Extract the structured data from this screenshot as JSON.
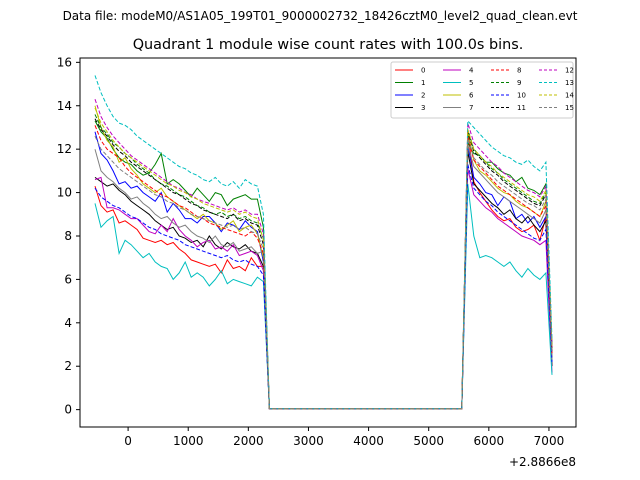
{
  "figure": {
    "suptitle": "Data file: modeM0/AS1A05_199T01_9000002732_18426cztM0_level2_quad_clean.evt"
  },
  "chart_data": {
    "type": "line",
    "title": "Quadrant 1 module wise count rates with 100.0s bins.",
    "xlabel": "",
    "ylabel": "",
    "x_offset_label": "+2.8866e8",
    "xlim": [
      -800,
      7450
    ],
    "ylim": [
      -0.8,
      16.2
    ],
    "xticks": [
      0,
      1000,
      2000,
      3000,
      4000,
      5000,
      6000,
      7000
    ],
    "yticks": [
      0,
      2,
      4,
      6,
      8,
      10,
      12,
      14,
      16
    ],
    "legend_location": "top-right",
    "legend_columns": 4,
    "x": [
      -550,
      -450,
      -350,
      -250,
      -150,
      -50,
      50,
      150,
      250,
      350,
      450,
      550,
      650,
      750,
      850,
      950,
      1050,
      1150,
      1250,
      1350,
      1450,
      1550,
      1650,
      1750,
      1850,
      1950,
      2050,
      2150,
      2250,
      2350,
      2450,
      5550,
      5650,
      5750,
      5850,
      5950,
      6050,
      6150,
      6250,
      6350,
      6450,
      6550,
      6650,
      6750,
      6850,
      6950,
      7050
    ],
    "series": [
      {
        "name": "0",
        "color": "#ff0000",
        "dash": "solid",
        "values": [
          10.3,
          9.4,
          9.1,
          9.2,
          8.6,
          8.7,
          8.5,
          8.3,
          7.9,
          7.8,
          7.7,
          7.8,
          7.6,
          7.7,
          7.4,
          7.2,
          6.9,
          6.8,
          6.7,
          6.6,
          6.7,
          6.3,
          6.9,
          6.5,
          6.6,
          6.4,
          7.0,
          6.6,
          6.6,
          0.05,
          0.05,
          0.05,
          12.9,
          10.5,
          10.0,
          9.6,
          9.2,
          8.9,
          8.7,
          8.8,
          8.4,
          8.2,
          8.3,
          8.5,
          7.8,
          8.9,
          2.6
        ]
      },
      {
        "name": "1",
        "color": "#008000",
        "dash": "solid",
        "values": [
          13.3,
          12.8,
          12.5,
          12.0,
          11.6,
          11.4,
          11.3,
          11.0,
          10.8,
          10.9,
          11.3,
          11.8,
          10.4,
          10.6,
          10.4,
          10.1,
          9.8,
          10.2,
          9.9,
          9.6,
          10.0,
          9.9,
          9.4,
          9.7,
          9.8,
          9.9,
          9.7,
          9.7,
          8.4,
          0.05,
          0.05,
          0.05,
          12.3,
          11.8,
          11.7,
          11.4,
          11.4,
          11.1,
          10.9,
          10.8,
          10.5,
          10.7,
          10.2,
          10.1,
          9.9,
          10.4,
          2.9
        ]
      },
      {
        "name": "2",
        "color": "#0000ff",
        "dash": "solid",
        "values": [
          12.8,
          11.8,
          11.5,
          11.0,
          10.4,
          10.5,
          10.2,
          10.3,
          10.0,
          9.8,
          9.6,
          10.0,
          9.1,
          9.5,
          9.2,
          8.8,
          8.8,
          8.6,
          8.9,
          8.9,
          8.6,
          8.2,
          8.6,
          8.5,
          8.3,
          8.7,
          8.4,
          8.2,
          6.8,
          0.05,
          0.05,
          0.05,
          12.2,
          10.7,
          10.4,
          10.0,
          9.9,
          9.4,
          9.8,
          9.6,
          8.8,
          9.0,
          8.6,
          8.9,
          8.4,
          8.9,
          2.4
        ]
      },
      {
        "name": "3",
        "color": "#000000",
        "dash": "solid",
        "values": [
          10.7,
          10.5,
          10.3,
          10.4,
          10.1,
          9.9,
          9.6,
          9.4,
          9.2,
          9.0,
          8.7,
          8.5,
          8.3,
          8.4,
          8.0,
          7.9,
          7.7,
          7.8,
          7.5,
          8.0,
          7.6,
          7.4,
          7.7,
          7.5,
          7.4,
          7.6,
          7.3,
          7.2,
          6.6,
          0.05,
          0.05,
          0.05,
          11.9,
          10.4,
          10.1,
          9.8,
          9.5,
          9.3,
          9.0,
          9.2,
          8.8,
          8.6,
          8.9,
          8.5,
          8.2,
          8.7,
          2.0
        ]
      },
      {
        "name": "4",
        "color": "#bf00bf",
        "dash": "solid",
        "values": [
          10.6,
          10.7,
          9.3,
          9.3,
          9.2,
          9.0,
          8.8,
          8.8,
          8.5,
          8.2,
          8.1,
          8.5,
          8.2,
          8.8,
          8.3,
          8.0,
          7.8,
          7.5,
          7.7,
          7.8,
          7.4,
          7.5,
          7.3,
          7.6,
          7.1,
          7.2,
          7.3,
          7.1,
          6.4,
          0.05,
          0.05,
          0.05,
          11.1,
          9.9,
          9.6,
          9.3,
          9.1,
          8.8,
          8.6,
          8.4,
          8.2,
          8.0,
          7.9,
          7.8,
          7.6,
          7.8,
          1.7
        ]
      },
      {
        "name": "5",
        "color": "#00bfbf",
        "dash": "solid",
        "values": [
          9.5,
          8.4,
          8.7,
          8.9,
          7.2,
          7.8,
          7.6,
          7.3,
          7.0,
          7.2,
          6.8,
          6.6,
          6.5,
          6.0,
          6.3,
          6.8,
          6.1,
          6.3,
          6.1,
          5.7,
          6.0,
          6.4,
          5.8,
          6.0,
          5.9,
          5.8,
          5.7,
          6.1,
          5.9,
          0.05,
          0.05,
          0.05,
          10.4,
          8.0,
          7.0,
          7.1,
          7.0,
          6.8,
          6.6,
          6.8,
          6.4,
          6.1,
          6.5,
          6.2,
          6.0,
          6.3,
          1.6
        ]
      },
      {
        "name": "6",
        "color": "#bfbf00",
        "dash": "solid",
        "values": [
          14.0,
          13.0,
          12.4,
          12.1,
          11.4,
          11.6,
          11.1,
          10.8,
          10.4,
          10.2,
          10.0,
          10.2,
          9.8,
          9.6,
          9.4,
          9.2,
          9.0,
          8.8,
          9.0,
          8.7,
          8.6,
          8.3,
          8.5,
          8.7,
          8.2,
          8.4,
          8.5,
          8.1,
          7.0,
          0.05,
          0.05,
          0.05,
          12.8,
          11.5,
          11.0,
          10.8,
          10.5,
          10.2,
          10.0,
          9.9,
          9.6,
          9.4,
          9.3,
          9.1,
          8.9,
          9.6,
          2.4
        ]
      },
      {
        "name": "7",
        "color": "#808080",
        "dash": "solid",
        "values": [
          12.0,
          11.0,
          10.7,
          10.5,
          10.2,
          10.0,
          9.7,
          9.8,
          9.5,
          9.3,
          9.0,
          8.8,
          8.9,
          8.6,
          8.4,
          8.5,
          8.2,
          8.0,
          7.9,
          7.7,
          8.0,
          7.6,
          7.5,
          7.7,
          7.3,
          7.4,
          7.5,
          7.2,
          7.3,
          0.05,
          0.05,
          0.05,
          12.2,
          11.2,
          10.9,
          10.6,
          10.3,
          10.0,
          9.8,
          9.6,
          9.4,
          9.2,
          9.0,
          8.8,
          8.6,
          9.2,
          2.2
        ]
      },
      {
        "name": "8",
        "color": "#ff0000",
        "dash": "dashed",
        "values": [
          13.1,
          12.4,
          12.0,
          11.8,
          11.6,
          11.2,
          10.9,
          10.7,
          10.5,
          10.3,
          10.1,
          9.9,
          9.8,
          9.6,
          9.4,
          9.3,
          9.1,
          8.9,
          8.8,
          8.6,
          8.5,
          8.4,
          8.3,
          8.2,
          8.1,
          8.0,
          8.2,
          7.9,
          7.2,
          0.05,
          0.05,
          0.05,
          12.6,
          11.5,
          11.2,
          10.9,
          10.6,
          10.3,
          10.1,
          9.9,
          9.7,
          9.5,
          9.3,
          9.1,
          8.9,
          9.4,
          2.6
        ]
      },
      {
        "name": "9",
        "color": "#008000",
        "dash": "dashed",
        "values": [
          13.6,
          13.0,
          12.7,
          12.3,
          12.1,
          11.8,
          11.6,
          11.3,
          11.1,
          10.9,
          10.6,
          10.4,
          10.3,
          10.1,
          9.9,
          9.8,
          9.6,
          9.4,
          9.3,
          9.1,
          9.0,
          9.1,
          8.9,
          9.0,
          8.8,
          8.9,
          8.7,
          8.6,
          7.9,
          0.05,
          0.05,
          0.05,
          12.9,
          12.0,
          11.7,
          11.4,
          11.1,
          10.9,
          10.6,
          10.4,
          10.2,
          10.0,
          9.8,
          9.6,
          9.5,
          10.0,
          2.8
        ]
      },
      {
        "name": "10",
        "color": "#0000ff",
        "dash": "dashed",
        "values": [
          10.2,
          9.8,
          9.6,
          9.4,
          9.3,
          9.1,
          8.9,
          8.8,
          8.6,
          8.4,
          8.3,
          8.1,
          8.0,
          7.9,
          7.8,
          7.6,
          7.5,
          7.4,
          7.3,
          7.2,
          7.1,
          7.0,
          7.1,
          6.9,
          6.8,
          6.9,
          6.7,
          6.6,
          6.2,
          0.05,
          0.05,
          0.05,
          11.3,
          10.2,
          9.9,
          9.6,
          9.4,
          9.1,
          8.9,
          8.7,
          8.5,
          8.3,
          8.1,
          7.9,
          7.8,
          8.3,
          2.2
        ]
      },
      {
        "name": "11",
        "color": "#000000",
        "dash": "dashed",
        "values": [
          13.4,
          12.9,
          12.6,
          12.2,
          11.9,
          11.7,
          11.4,
          11.2,
          11.0,
          10.8,
          10.6,
          10.4,
          10.2,
          10.0,
          9.9,
          9.7,
          9.5,
          9.4,
          9.2,
          9.1,
          9.0,
          8.9,
          8.8,
          9.0,
          8.7,
          8.8,
          8.6,
          8.5,
          7.6,
          0.05,
          0.05,
          0.05,
          12.8,
          11.9,
          11.6,
          11.3,
          11.0,
          10.8,
          10.5,
          10.3,
          10.1,
          9.9,
          9.7,
          9.5,
          9.4,
          9.9,
          2.7
        ]
      },
      {
        "name": "12",
        "color": "#bf00bf",
        "dash": "dashed",
        "values": [
          14.3,
          13.5,
          13.0,
          12.6,
          12.3,
          12.0,
          11.7,
          11.5,
          11.3,
          11.1,
          10.9,
          10.7,
          10.5,
          10.3,
          10.2,
          10.0,
          9.9,
          9.7,
          9.6,
          9.5,
          9.4,
          9.3,
          9.2,
          9.3,
          9.1,
          9.2,
          9.0,
          9.0,
          8.1,
          0.05,
          0.05,
          0.05,
          13.2,
          12.3,
          12.0,
          11.7,
          11.4,
          11.2,
          10.9,
          10.7,
          10.5,
          10.3,
          10.1,
          10.0,
          9.8,
          10.3,
          2.9
        ]
      },
      {
        "name": "13",
        "color": "#00bfbf",
        "dash": "dashed",
        "values": [
          15.4,
          14.6,
          14.0,
          13.5,
          13.2,
          13.1,
          12.9,
          12.6,
          12.4,
          12.2,
          12.0,
          11.8,
          11.6,
          11.4,
          11.2,
          11.1,
          10.9,
          10.8,
          10.6,
          10.5,
          10.7,
          10.4,
          10.3,
          10.5,
          10.2,
          10.6,
          10.4,
          10.3,
          9.0,
          0.05,
          0.05,
          0.05,
          13.3,
          13.0,
          12.7,
          12.4,
          12.1,
          11.9,
          11.7,
          11.6,
          11.4,
          11.3,
          11.5,
          11.2,
          11.0,
          11.4,
          3.2
        ]
      },
      {
        "name": "14",
        "color": "#bfbf00",
        "dash": "dashed",
        "values": [
          13.9,
          13.2,
          12.8,
          12.4,
          12.1,
          11.8,
          11.6,
          11.4,
          11.2,
          11.0,
          10.8,
          10.6,
          10.4,
          10.3,
          10.1,
          10.0,
          9.8,
          9.7,
          9.5,
          9.4,
          9.3,
          9.2,
          9.1,
          9.2,
          9.0,
          9.1,
          8.9,
          8.8,
          7.8,
          0.05,
          0.05,
          0.05,
          12.9,
          12.0,
          11.7,
          11.4,
          11.2,
          10.9,
          10.7,
          10.5,
          10.3,
          10.1,
          9.9,
          9.8,
          9.6,
          10.1,
          2.8
        ]
      },
      {
        "name": "15",
        "color": "#808080",
        "dash": "dashed",
        "values": [
          12.6,
          12.0,
          11.7,
          11.4,
          11.1,
          10.9,
          10.7,
          10.5,
          10.3,
          10.1,
          9.9,
          9.8,
          9.6,
          9.5,
          9.3,
          9.2,
          9.0,
          8.9,
          8.8,
          8.7,
          8.6,
          8.5,
          8.4,
          8.5,
          8.3,
          8.4,
          8.2,
          8.1,
          7.4,
          0.05,
          0.05,
          0.05,
          12.5,
          11.6,
          11.3,
          11.0,
          10.8,
          10.5,
          10.3,
          10.1,
          9.9,
          9.7,
          9.5,
          9.4,
          9.2,
          9.7,
          2.5
        ]
      }
    ]
  }
}
